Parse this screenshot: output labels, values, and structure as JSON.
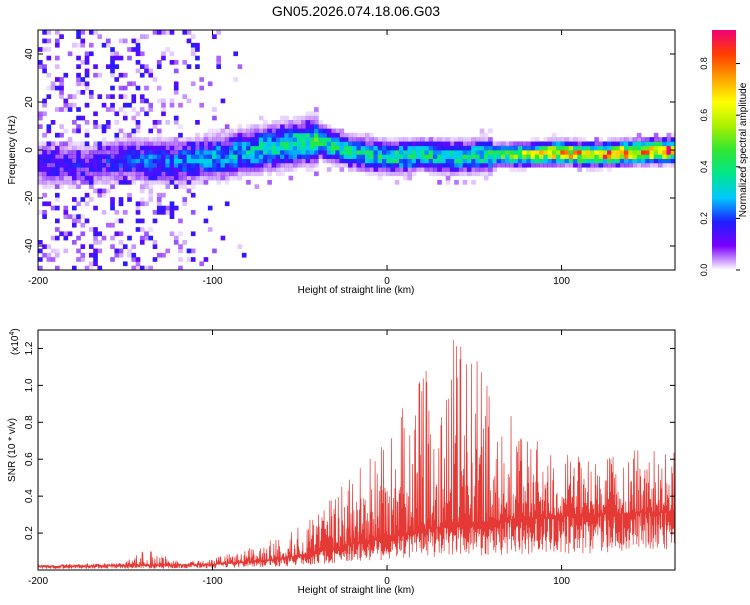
{
  "title": "GN05.2026.074.18.06.G03",
  "colors": {
    "line": "#e53935",
    "axis": "#000000",
    "background": "#ffffff"
  },
  "chart_data": [
    {
      "type": "heatmap",
      "name": "spectrogram",
      "xlabel": "Height of straight line (km)",
      "ylabel": "Frequency (Hz)",
      "xlim": [
        -200,
        165
      ],
      "ylim": [
        -50,
        50
      ],
      "xticks": [
        -200,
        -100,
        0,
        100
      ],
      "xtick_labels": [
        "-200",
        "-100",
        "0",
        "100"
      ],
      "yticks": [
        -40,
        -20,
        0,
        20,
        40
      ],
      "ytick_labels": [
        "-40",
        "-20",
        "0",
        "20",
        "40"
      ],
      "colorbar": {
        "label": "Normalized spectral amplitude",
        "range": [
          0.0,
          0.93
        ],
        "ticks": [
          0.0,
          0.2,
          0.4,
          0.6,
          0.8
        ],
        "tick_labels": [
          "0.0",
          "0.2",
          "0.4",
          "0.6",
          "0.8"
        ],
        "colormap": [
          "#ffffff",
          "#7b00ff",
          "#1e1eff",
          "#00c8ff",
          "#00e68c",
          "#32e632",
          "#aaf000",
          "#ffff00",
          "#ffa000",
          "#ff3c00",
          "#f00078"
        ]
      },
      "ridge_center_hz": [
        {
          "x": -170,
          "y": -6
        },
        {
          "x": -150,
          "y": -4
        },
        {
          "x": -120,
          "y": -5
        },
        {
          "x": -90,
          "y": -2
        },
        {
          "x": -60,
          "y": 2
        },
        {
          "x": -40,
          "y": 4
        },
        {
          "x": -20,
          "y": -1
        },
        {
          "x": 0,
          "y": -3
        },
        {
          "x": 20,
          "y": -2
        },
        {
          "x": 40,
          "y": -3
        },
        {
          "x": 60,
          "y": -2
        },
        {
          "x": 80,
          "y": -2
        },
        {
          "x": 100,
          "y": -1
        },
        {
          "x": 120,
          "y": -2
        },
        {
          "x": 140,
          "y": -1
        },
        {
          "x": 165,
          "y": 0
        }
      ],
      "peak_amplitude_profile": [
        {
          "x": -170,
          "v": 0.18
        },
        {
          "x": -140,
          "v": 0.25
        },
        {
          "x": -100,
          "v": 0.3
        },
        {
          "x": -60,
          "v": 0.4
        },
        {
          "x": -40,
          "v": 0.45
        },
        {
          "x": -20,
          "v": 0.38
        },
        {
          "x": 0,
          "v": 0.42
        },
        {
          "x": 30,
          "v": 0.4
        },
        {
          "x": 60,
          "v": 0.45
        },
        {
          "x": 80,
          "v": 0.65
        },
        {
          "x": 100,
          "v": 0.8
        },
        {
          "x": 130,
          "v": 0.85
        },
        {
          "x": 165,
          "v": 0.9
        }
      ],
      "noise_region_extent_km": [
        -200,
        -80
      ]
    },
    {
      "type": "line",
      "name": "snr",
      "xlabel": "Height of straight line (km)",
      "ylabel": "SNR (10 * v/v)",
      "scale_label_prefix": "(x10",
      "scale_label_exp": "4",
      "scale_label_suffix": ")",
      "xlim": [
        -200,
        165
      ],
      "ylim": [
        0,
        1.3
      ],
      "xticks": [
        -200,
        -100,
        0,
        100
      ],
      "xtick_labels": [
        "-200",
        "-100",
        "0",
        "100"
      ],
      "yticks": [
        0.2,
        0.4,
        0.6,
        0.8,
        1.0,
        1.2
      ],
      "ytick_labels": [
        "0.2",
        "0.4",
        "0.6",
        "0.8",
        "1.0",
        "1.2"
      ],
      "envelope": [
        {
          "x": -200,
          "y": 0.03
        },
        {
          "x": -150,
          "y": 0.04
        },
        {
          "x": -140,
          "y": 0.12
        },
        {
          "x": -120,
          "y": 0.05
        },
        {
          "x": -100,
          "y": 0.06
        },
        {
          "x": -80,
          "y": 0.12
        },
        {
          "x": -60,
          "y": 0.18
        },
        {
          "x": -40,
          "y": 0.3
        },
        {
          "x": -20,
          "y": 0.55
        },
        {
          "x": 0,
          "y": 0.7
        },
        {
          "x": 20,
          "y": 1.1
        },
        {
          "x": 45,
          "y": 1.3
        },
        {
          "x": 60,
          "y": 0.95
        },
        {
          "x": 80,
          "y": 0.75
        },
        {
          "x": 100,
          "y": 0.65
        },
        {
          "x": 120,
          "y": 0.6
        },
        {
          "x": 140,
          "y": 0.65
        },
        {
          "x": 165,
          "y": 0.7
        }
      ],
      "baseline": [
        {
          "x": -200,
          "y": 0.02
        },
        {
          "x": -100,
          "y": 0.03
        },
        {
          "x": -60,
          "y": 0.06
        },
        {
          "x": -30,
          "y": 0.12
        },
        {
          "x": 0,
          "y": 0.18
        },
        {
          "x": 40,
          "y": 0.25
        },
        {
          "x": 80,
          "y": 0.28
        },
        {
          "x": 120,
          "y": 0.3
        },
        {
          "x": 165,
          "y": 0.32
        }
      ]
    }
  ]
}
